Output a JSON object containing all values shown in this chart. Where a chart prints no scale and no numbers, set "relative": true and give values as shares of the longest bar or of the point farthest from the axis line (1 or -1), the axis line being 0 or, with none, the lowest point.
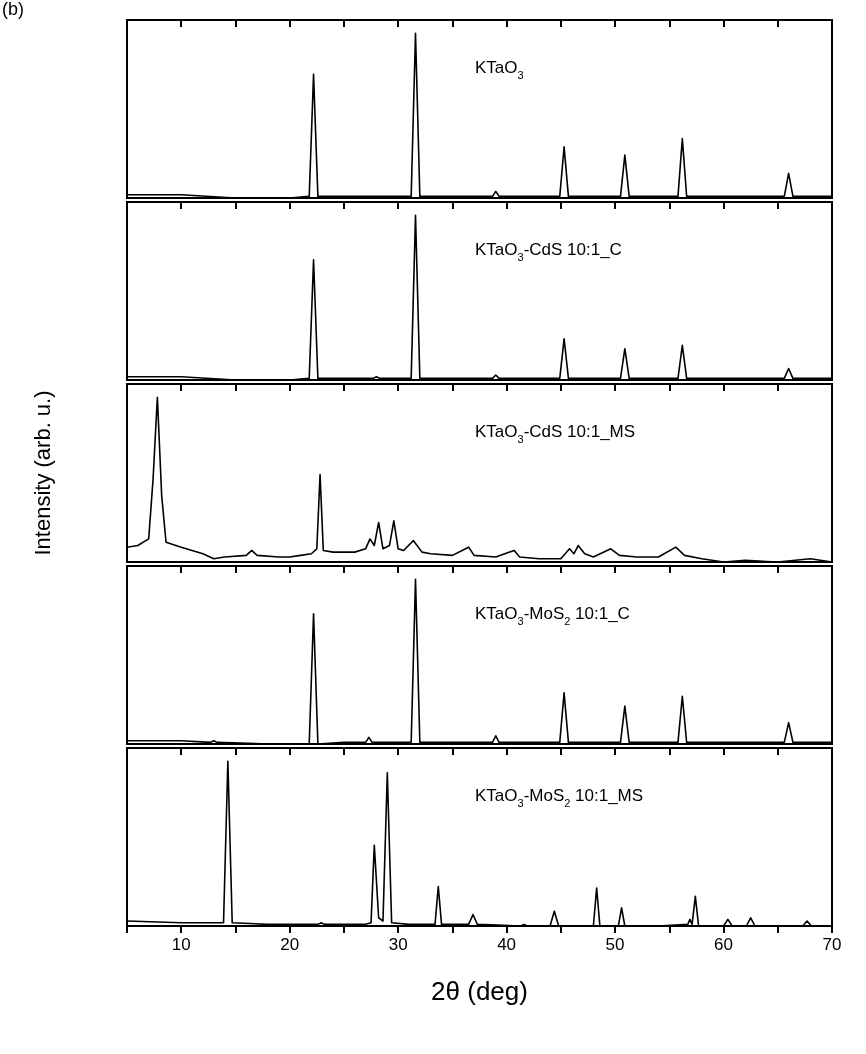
{
  "chart_data": [
    {
      "type": "line",
      "annotations": [
        "(b)"
      ],
      "relative": true,
      "xlim": [
        5,
        70
      ],
      "xticks": [
        {
          "value": 5,
          "label": null
        },
        10,
        {
          "value": 15,
          "label": null
        },
        20,
        {
          "value": 25,
          "label": null
        },
        30,
        {
          "value": 35,
          "label": null
        },
        40,
        {
          "value": 45,
          "label": null
        },
        50,
        {
          "value": 55,
          "label": null
        },
        60,
        {
          "value": 65,
          "label": null
        },
        70
      ],
      "tick_labels": false,
      "marker": "none",
      "line_style": "solid",
      "series": [
        {
          "name": "KTaO$_{3}$",
          "color": "#000000",
          "x": [
            5,
            10,
            15,
            20,
            21.8,
            22.2,
            22.6,
            25,
            28,
            31.2,
            31.6,
            32,
            35,
            38.7,
            39.0,
            39.3,
            42,
            44.9,
            45.3,
            45.7,
            48,
            50.5,
            50.9,
            51.3,
            53,
            55.8,
            56.2,
            56.6,
            60,
            63,
            65.6,
            66.0,
            66.4,
            70
          ],
          "values": [
            0.02,
            0.02,
            0,
            0,
            0.01,
            0.75,
            0.01,
            0.01,
            0.01,
            0.01,
            1,
            0.01,
            0.01,
            0.01,
            0.04,
            0.01,
            0.01,
            0.01,
            0.31,
            0.01,
            0.01,
            0.01,
            0.26,
            0.01,
            0.01,
            0.01,
            0.36,
            0.01,
            0.01,
            0.01,
            0.01,
            0.15,
            0.01,
            0.01
          ]
        }
      ]
    },
    {
      "type": "line",
      "relative": true,
      "xlim": [
        5,
        70
      ],
      "xticks": [
        {
          "value": 5,
          "label": null
        },
        10,
        {
          "value": 15,
          "label": null
        },
        20,
        {
          "value": 25,
          "label": null
        },
        30,
        {
          "value": 35,
          "label": null
        },
        40,
        {
          "value": 45,
          "label": null
        },
        50,
        {
          "value": 55,
          "label": null
        },
        60,
        {
          "value": 65,
          "label": null
        },
        70
      ],
      "tick_labels": false,
      "marker": "none",
      "line_style": "solid",
      "series": [
        {
          "name": "KTaO$_{3}$-CdS 10:1_C",
          "color": "#000000",
          "x": [
            5,
            10,
            15,
            20,
            21.8,
            22.2,
            22.6,
            25,
            27.7,
            28.0,
            28.3,
            31.2,
            31.6,
            32,
            35,
            38.7,
            39.0,
            39.3,
            42,
            44.9,
            45.3,
            45.7,
            48,
            50.5,
            50.9,
            51.3,
            53,
            55.8,
            56.2,
            56.6,
            60,
            63,
            65.6,
            66.0,
            66.4,
            70
          ],
          "values": [
            0.02,
            0.02,
            0,
            0,
            0.01,
            0.73,
            0.01,
            0.01,
            0.01,
            0.02,
            0.01,
            0.01,
            1,
            0.01,
            0.01,
            0.01,
            0.03,
            0.01,
            0.01,
            0.01,
            0.25,
            0.01,
            0.01,
            0.01,
            0.19,
            0.01,
            0.01,
            0.01,
            0.21,
            0.01,
            0.01,
            0.01,
            0.01,
            0.07,
            0.01,
            0.01
          ]
        }
      ]
    },
    {
      "type": "line",
      "ylabel": "Intensity (arb. u.)",
      "relative": true,
      "xlim": [
        5,
        70
      ],
      "xticks": [
        {
          "value": 5,
          "label": null
        },
        10,
        {
          "value": 15,
          "label": null
        },
        20,
        {
          "value": 25,
          "label": null
        },
        30,
        {
          "value": 35,
          "label": null
        },
        40,
        {
          "value": 45,
          "label": null
        },
        50,
        {
          "value": 55,
          "label": null
        },
        60,
        {
          "value": 65,
          "label": null
        },
        70
      ],
      "tick_labels": false,
      "marker": "none",
      "line_style": "solid",
      "series": [
        {
          "name": "KTaO$_{3}$-CdS 10:1_MS",
          "color": "#000000",
          "x": [
            5,
            6,
            7,
            7.4,
            7.8,
            8.2,
            8.6,
            10,
            12,
            13,
            14,
            16,
            16.5,
            17,
            19,
            20,
            21,
            22,
            22.5,
            22.8,
            23.1,
            24,
            25,
            26,
            27,
            27.4,
            27.8,
            28.2,
            28.6,
            29.2,
            29.6,
            30.0,
            30.5,
            31.4,
            32.2,
            33,
            35,
            36.5,
            37,
            39,
            40.7,
            41.2,
            43,
            45,
            45.8,
            46.2,
            46.6,
            47.2,
            48,
            49.6,
            50.4,
            52,
            54,
            55.6,
            56.4,
            58,
            60,
            62,
            65,
            68,
            70
          ],
          "values": [
            0.09,
            0.1,
            0.14,
            0.5,
            1,
            0.4,
            0.12,
            0.09,
            0.05,
            0.02,
            0.03,
            0.04,
            0.07,
            0.04,
            0.03,
            0.03,
            0.04,
            0.05,
            0.08,
            0.53,
            0.07,
            0.06,
            0.06,
            0.06,
            0.08,
            0.14,
            0.1,
            0.24,
            0.08,
            0.1,
            0.25,
            0.08,
            0.07,
            0.13,
            0.06,
            0.05,
            0.04,
            0.09,
            0.04,
            0.03,
            0.07,
            0.03,
            0.02,
            0.02,
            0.08,
            0.05,
            0.1,
            0.05,
            0.03,
            0.08,
            0.04,
            0.03,
            0.03,
            0.09,
            0.04,
            0.02,
            0,
            0.01,
            0,
            0.02,
            0
          ]
        }
      ]
    },
    {
      "type": "line",
      "relative": true,
      "xlim": [
        5,
        70
      ],
      "xticks": [
        {
          "value": 5,
          "label": null
        },
        10,
        {
          "value": 15,
          "label": null
        },
        20,
        {
          "value": 25,
          "label": null
        },
        30,
        {
          "value": 35,
          "label": null
        },
        40,
        {
          "value": 45,
          "label": null
        },
        50,
        {
          "value": 55,
          "label": null
        },
        60,
        {
          "value": 65,
          "label": null
        },
        70
      ],
      "tick_labels": false,
      "marker": "none",
      "line_style": "solid",
      "series": [
        {
          "name": "KTaO$_{3}$-MoS$_{2}$ 10:1_C",
          "color": "#000000",
          "x": [
            5,
            10,
            12.7,
            13.0,
            13.3,
            18,
            21.8,
            22.2,
            22.6,
            25,
            27.0,
            27.3,
            27.6,
            31.2,
            31.6,
            32,
            35,
            38.7,
            39.0,
            39.3,
            42,
            44.9,
            45.3,
            45.7,
            48,
            50.5,
            50.9,
            51.3,
            53,
            55.8,
            56.2,
            56.6,
            60,
            63,
            65.6,
            66.0,
            66.4,
            70
          ],
          "values": [
            0.02,
            0.02,
            0.01,
            0.02,
            0.01,
            0,
            0,
            0.79,
            0,
            0.01,
            0.01,
            0.04,
            0.01,
            0.01,
            1,
            0.01,
            0.01,
            0.01,
            0.05,
            0.01,
            0.01,
            0.01,
            0.31,
            0.01,
            0.01,
            0.01,
            0.23,
            0.01,
            0.01,
            0.01,
            0.29,
            0.01,
            0.01,
            0.01,
            0.01,
            0.13,
            0.01,
            0.01
          ]
        }
      ]
    },
    {
      "type": "line",
      "xlabel": "2θ (deg)",
      "relative": true,
      "xlim": [
        5,
        70
      ],
      "xticks": [
        {
          "value": 5,
          "label": null
        },
        10,
        {
          "value": 15,
          "label": null
        },
        20,
        {
          "value": 25,
          "label": null
        },
        30,
        {
          "value": 35,
          "label": null
        },
        40,
        {
          "value": 45,
          "label": null
        },
        50,
        {
          "value": 55,
          "label": null
        },
        60,
        {
          "value": 65,
          "label": null
        },
        70
      ],
      "tick_labels": "x",
      "marker": "none",
      "line_style": "solid",
      "series": [
        {
          "name": "KTaO$_{3}$-MoS$_{2}$ 10:1_MS",
          "color": "#000000",
          "x": [
            5,
            10,
            13.9,
            14.3,
            14.7,
            18,
            22.6,
            22.9,
            23.2,
            27,
            27.5,
            27.8,
            28.2,
            28.6,
            29.0,
            29.4,
            31,
            33.4,
            33.7,
            34.0,
            36.5,
            36.9,
            37.3,
            41.3,
            41.6,
            41.9,
            44.0,
            44.4,
            44.8,
            48.0,
            48.3,
            48.6,
            50.3,
            50.6,
            50.9,
            54,
            56.7,
            56.9,
            57.1,
            57.4,
            57.7,
            60.0,
            60.4,
            60.8,
            62.1,
            62.5,
            62.9,
            67.3,
            67.7,
            68.1,
            70
          ],
          "values": [
            0.03,
            0.02,
            0.02,
            1,
            0.02,
            0.01,
            0.01,
            0.02,
            0.01,
            0.01,
            0.02,
            0.49,
            0.05,
            0.03,
            0.93,
            0.02,
            0.01,
            0.01,
            0.24,
            0.01,
            0.01,
            0.07,
            0.01,
            0,
            0.01,
            0,
            0,
            0.09,
            0,
            0,
            0.23,
            0,
            0,
            0.11,
            0,
            0,
            0.01,
            0.04,
            0.01,
            0.18,
            0,
            0,
            0.04,
            0,
            0,
            0.05,
            0,
            0,
            0.03,
            0,
            0
          ]
        }
      ]
    }
  ]
}
